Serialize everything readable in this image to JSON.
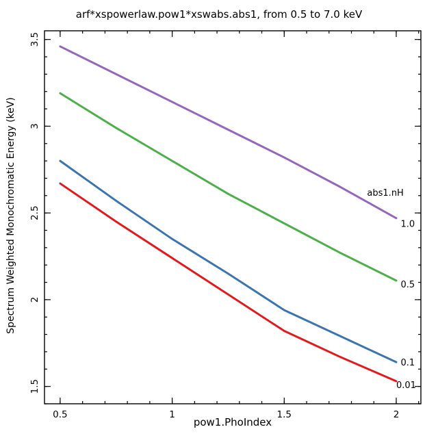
{
  "chart_data": {
    "type": "line",
    "title": "arf*xspowerlaw.pow1*xswabs.abs1, from 0.5 to 7.0 keV",
    "xlabel": "pow1.PhoIndex",
    "ylabel": "Spectrum Weighted Monochromatic Energy (keV)",
    "xlim": [
      0.43,
      2.11
    ],
    "ylim": [
      1.4,
      3.55
    ],
    "x_major_ticks": [
      0.5,
      1,
      1.5,
      2
    ],
    "x_tick_labels": [
      "0.5",
      "1",
      "1.5",
      "2"
    ],
    "y_major_ticks": [
      1.5,
      2,
      2.5,
      3,
      3.5
    ],
    "y_tick_labels": [
      "1.5",
      "2",
      "2.5",
      "3",
      "3.5"
    ],
    "minor_tick_step": 0.1,
    "grid": false,
    "legend_title": "abs1.nH",
    "x": [
      0.5,
      0.75,
      1.0,
      1.25,
      1.5,
      1.75,
      2.0
    ],
    "series": [
      {
        "name": "abs1.nH = 1.0",
        "label": "1.0",
        "color": "#9467bd",
        "values": [
          3.46,
          3.3,
          3.14,
          2.98,
          2.82,
          2.65,
          2.47
        ]
      },
      {
        "name": "abs1.nH = 0.5",
        "label": "0.5",
        "color": "#4daf4a",
        "values": [
          3.19,
          2.99,
          2.8,
          2.61,
          2.44,
          2.27,
          2.11
        ]
      },
      {
        "name": "abs1.nH = 0.1",
        "label": "0.1",
        "color": "#3b75af",
        "values": [
          2.8,
          2.57,
          2.35,
          2.15,
          1.94,
          1.79,
          1.64
        ]
      },
      {
        "name": "abs1.nH = 0.01",
        "label": "0.01",
        "color": "#e31a1c",
        "values": [
          2.67,
          2.45,
          2.24,
          2.03,
          1.82,
          1.67,
          1.53
        ]
      }
    ],
    "annotations": [
      {
        "text": "abs1.nH",
        "x": 1.87,
        "y": 2.6
      },
      {
        "text": "1.0",
        "x": 2.02,
        "y": 2.42
      },
      {
        "text": "0.5",
        "x": 2.02,
        "y": 2.07
      },
      {
        "text": "0.1",
        "x": 2.02,
        "y": 1.62
      },
      {
        "text": "0.01",
        "x": 2.0,
        "y": 1.49
      }
    ]
  }
}
